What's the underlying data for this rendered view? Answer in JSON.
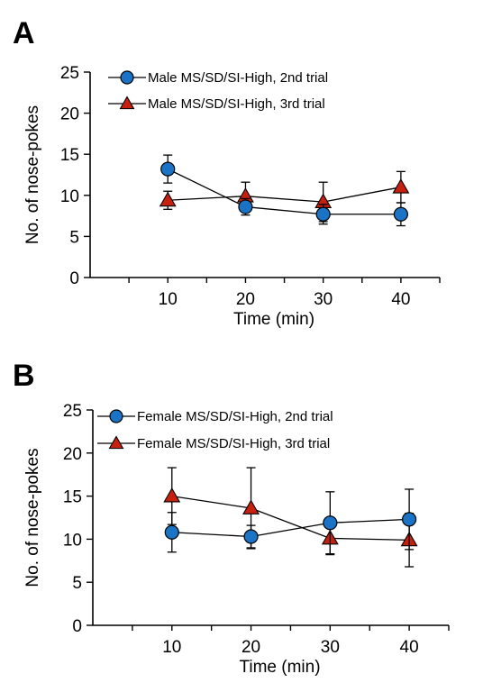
{
  "colors": {
    "series_2nd": "#1a73c4",
    "series_3rd": "#c8200e",
    "axis": "#000000"
  },
  "chart_data": [
    {
      "panel": "A",
      "type": "line",
      "xlabel": "Time (min)",
      "ylabel": "No. of nose-pokes",
      "x": [
        10,
        20,
        30,
        40
      ],
      "xticks": [
        10,
        20,
        30,
        40
      ],
      "yticks": [
        0,
        5,
        10,
        15,
        20,
        25
      ],
      "xlim": [
        0,
        45
      ],
      "ylim": [
        0,
        25
      ],
      "grid": false,
      "legend_position": "top-left",
      "series": [
        {
          "name": "Male MS/SD/SI-High, 2nd trial",
          "marker": "circle",
          "color": "#1a73c4",
          "values": [
            13.2,
            8.6,
            7.7,
            7.7
          ],
          "errors": [
            1.7,
            1.0,
            1.2,
            1.4
          ]
        },
        {
          "name": "Male MS/SD/SI-High, 3rd trial",
          "marker": "triangle",
          "color": "#c8200e",
          "values": [
            9.4,
            9.9,
            9.2,
            11.0
          ],
          "errors": [
            1.1,
            1.7,
            2.4,
            1.9
          ]
        }
      ]
    },
    {
      "panel": "B",
      "type": "line",
      "xlabel": "Time (min)",
      "ylabel": "No. of nose-pokes",
      "x": [
        10,
        20,
        30,
        40
      ],
      "xticks": [
        10,
        20,
        30,
        40
      ],
      "yticks": [
        0,
        5,
        10,
        15,
        20,
        25
      ],
      "xlim": [
        0,
        45
      ],
      "ylim": [
        0,
        25
      ],
      "grid": false,
      "legend_position": "top-left",
      "series": [
        {
          "name": "Female MS/SD/SI-High, 2nd trial",
          "marker": "circle",
          "color": "#1a73c4",
          "values": [
            10.8,
            10.3,
            11.9,
            12.3
          ],
          "errors": [
            2.3,
            1.3,
            3.6,
            3.5
          ]
        },
        {
          "name": "Female MS/SD/SI-High, 3rd trial",
          "marker": "triangle",
          "color": "#c8200e",
          "values": [
            15.0,
            13.6,
            10.1,
            9.9
          ],
          "errors": [
            3.3,
            4.7,
            1.9,
            3.1
          ]
        }
      ]
    }
  ]
}
